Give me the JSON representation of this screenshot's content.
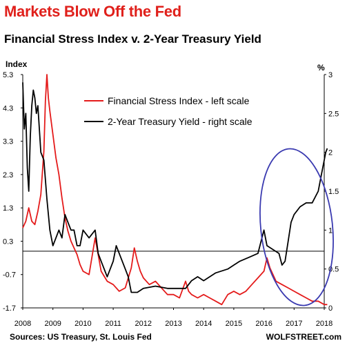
{
  "title": "Markets Blow Off the Fed",
  "subtitle": "Financial Stress Index v. 2-Year Treasury Yield",
  "source": "Sources: US Treasury, St. Louis Fed",
  "brand": "WOLFSTREET.com",
  "colors": {
    "title": "#e0201b",
    "stress": "#e41a1a",
    "yield": "#000000",
    "circle": "#3a3ab0"
  },
  "chart_data": {
    "type": "line",
    "left_axis_title": "Index",
    "right_axis_title": "%",
    "left_ylim": [
      -1.7,
      5.3
    ],
    "left_ticks": [
      "5.3",
      "4.3",
      "3.3",
      "2.3",
      "1.3",
      "0.3",
      "-0.7",
      "-1.7"
    ],
    "right_ylim": [
      0,
      3
    ],
    "right_ticks": [
      "3",
      "2.5",
      "2",
      "1.5",
      "1",
      "0.5",
      "0"
    ],
    "xlim": [
      2008,
      2018
    ],
    "x_ticks": [
      "2008",
      "2009",
      "2010",
      "2011",
      "2012",
      "2013",
      "2014",
      "2015",
      "2016",
      "2017",
      "2018"
    ],
    "zero_line_left": 0.0,
    "legend": [
      "Financial Stress Index - left scale",
      "2-Year Treasury Yield - right scale"
    ],
    "series": [
      {
        "name": "Financial Stress Index - left scale",
        "axis": "left",
        "x": [
          2008.0,
          2008.1,
          2008.2,
          2008.3,
          2008.4,
          2008.5,
          2008.6,
          2008.7,
          2008.75,
          2008.8,
          2008.85,
          2008.9,
          2009.0,
          2009.1,
          2009.2,
          2009.3,
          2009.4,
          2009.5,
          2009.6,
          2009.7,
          2009.8,
          2009.9,
          2010.0,
          2010.2,
          2010.4,
          2010.5,
          2010.6,
          2010.8,
          2011.0,
          2011.2,
          2011.4,
          2011.6,
          2011.7,
          2011.8,
          2011.9,
          2012.0,
          2012.2,
          2012.4,
          2012.6,
          2012.8,
          2013.0,
          2013.2,
          2013.4,
          2013.5,
          2013.6,
          2013.8,
          2014.0,
          2014.2,
          2014.4,
          2014.6,
          2014.8,
          2015.0,
          2015.2,
          2015.4,
          2015.6,
          2015.8,
          2016.0,
          2016.1,
          2016.2,
          2016.4,
          2016.6,
          2016.8,
          2017.0,
          2017.2,
          2017.4,
          2017.6,
          2017.8,
          2018.0,
          2018.1
        ],
        "y": [
          0.7,
          0.9,
          1.3,
          0.9,
          0.8,
          1.2,
          1.7,
          3.0,
          4.5,
          5.3,
          4.6,
          4.2,
          3.5,
          2.8,
          2.3,
          1.6,
          1.0,
          0.6,
          0.3,
          0.1,
          -0.1,
          -0.4,
          -0.6,
          -0.7,
          0.4,
          -0.1,
          -0.6,
          -0.9,
          -1.0,
          -1.2,
          -1.1,
          -0.5,
          0.1,
          -0.3,
          -0.6,
          -0.8,
          -1.0,
          -0.9,
          -1.1,
          -1.3,
          -1.3,
          -1.4,
          -0.9,
          -1.2,
          -1.3,
          -1.4,
          -1.3,
          -1.4,
          -1.5,
          -1.6,
          -1.3,
          -1.2,
          -1.3,
          -1.2,
          -1.0,
          -0.8,
          -0.6,
          -0.2,
          -0.5,
          -0.9,
          -1.0,
          -1.1,
          -1.2,
          -1.3,
          -1.4,
          -1.5,
          -1.5,
          -1.6,
          -1.6
        ]
      },
      {
        "name": "2-Year Treasury Yield - right scale",
        "axis": "right",
        "x": [
          2008.0,
          2008.05,
          2008.1,
          2008.15,
          2008.2,
          2008.25,
          2008.3,
          2008.35,
          2008.4,
          2008.45,
          2008.5,
          2008.6,
          2008.7,
          2008.8,
          2008.9,
          2009.0,
          2009.1,
          2009.2,
          2009.3,
          2009.4,
          2009.5,
          2009.6,
          2009.7,
          2009.8,
          2009.9,
          2010.0,
          2010.2,
          2010.4,
          2010.5,
          2010.6,
          2010.8,
          2011.0,
          2011.1,
          2011.2,
          2011.4,
          2011.5,
          2011.6,
          2011.8,
          2012.0,
          2012.4,
          2012.8,
          2013.0,
          2013.4,
          2013.6,
          2013.8,
          2014.0,
          2014.4,
          2014.8,
          2015.0,
          2015.2,
          2015.5,
          2015.8,
          2016.0,
          2016.1,
          2016.3,
          2016.5,
          2016.6,
          2016.7,
          2016.8,
          2016.9,
          2017.0,
          2017.2,
          2017.4,
          2017.6,
          2017.8,
          2017.9,
          2018.0,
          2018.05,
          2018.1
        ],
        "y": [
          2.9,
          2.3,
          2.5,
          1.8,
          1.5,
          2.2,
          2.6,
          2.8,
          2.7,
          2.5,
          2.6,
          2.0,
          1.9,
          1.4,
          1.0,
          0.8,
          0.9,
          1.0,
          0.9,
          1.2,
          1.1,
          1.0,
          1.0,
          0.8,
          0.8,
          1.0,
          0.9,
          1.0,
          0.7,
          0.6,
          0.4,
          0.6,
          0.8,
          0.7,
          0.5,
          0.4,
          0.2,
          0.2,
          0.25,
          0.28,
          0.25,
          0.25,
          0.25,
          0.35,
          0.4,
          0.35,
          0.45,
          0.5,
          0.55,
          0.6,
          0.65,
          0.7,
          1.0,
          0.8,
          0.75,
          0.7,
          0.55,
          0.6,
          0.85,
          1.1,
          1.2,
          1.3,
          1.35,
          1.35,
          1.5,
          1.7,
          1.9,
          2.0,
          2.05
        ]
      }
    ],
    "annotation": "ellipse highlighting 2016-2018 divergence"
  }
}
